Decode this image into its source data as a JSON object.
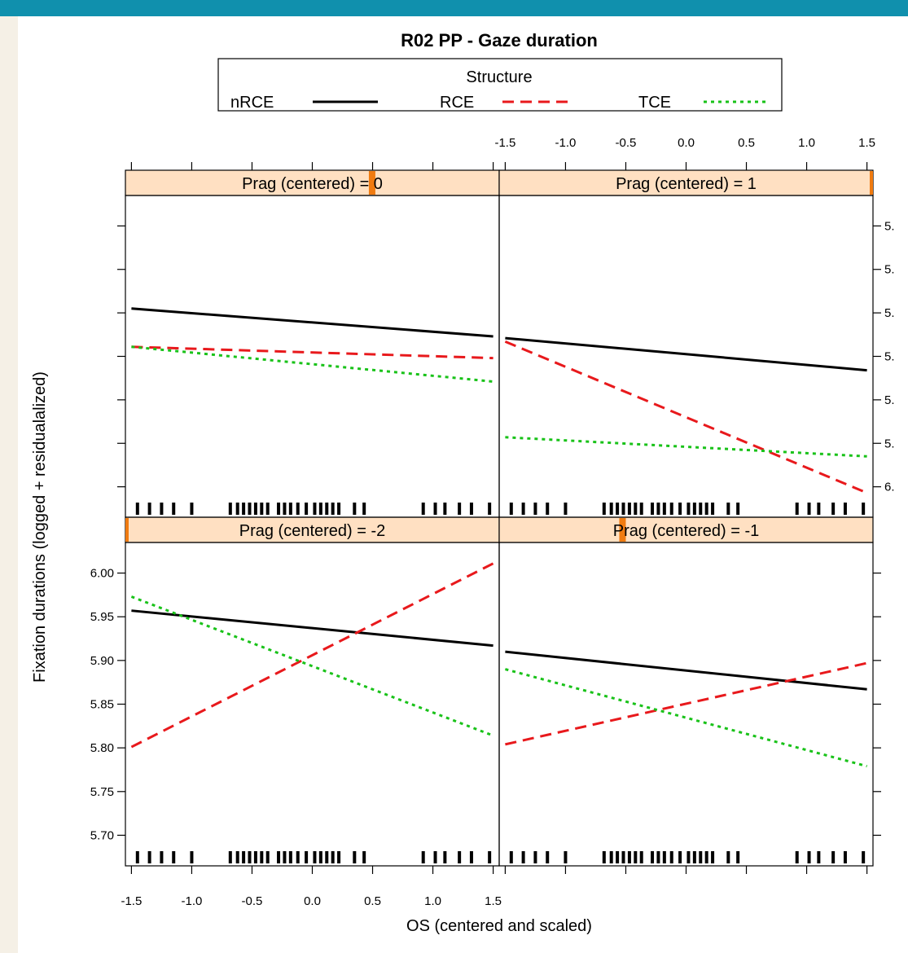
{
  "page": {
    "topbar_color": "#1090ad",
    "sidebar_color": "#f5f0e6"
  },
  "chart_data": {
    "type": "line",
    "title": "R02 PP - Gaze duration",
    "xlabel": "OS (centered and scaled)",
    "ylabel": "Fixation durations (logged + residualalized)",
    "xlim": [
      -1.55,
      1.55
    ],
    "ylim": [
      5.665,
      6.035
    ],
    "xticks": [
      "-1.5",
      "-1.0",
      "-0.5",
      "0.0",
      "0.5",
      "1.0",
      "1.5"
    ],
    "yticks": [
      "5.70",
      "5.75",
      "5.80",
      "5.85",
      "5.90",
      "5.95",
      "6.00"
    ],
    "right_ytick_labels": [
      "6.",
      "5.",
      "5.",
      "5.",
      "5.",
      "5.",
      "5."
    ],
    "legend": {
      "title": "Structure",
      "position": "top",
      "entries": [
        {
          "name": "nRCE",
          "color": "#000000",
          "style": "solid"
        },
        {
          "name": "RCE",
          "color": "#e8191c",
          "style": "dashed"
        },
        {
          "name": "TCE",
          "color": "#19c219",
          "style": "dotted"
        }
      ]
    },
    "strip_color": "#ffe0c2",
    "strip_marker_color": "#f07b10",
    "rug_x": [
      -1.45,
      -1.35,
      -1.25,
      -1.15,
      -1.0,
      -0.68,
      -0.62,
      -0.57,
      -0.52,
      -0.47,
      -0.42,
      -0.37,
      -0.28,
      -0.23,
      -0.18,
      -0.12,
      -0.05,
      0.02,
      0.07,
      0.12,
      0.17,
      0.22,
      0.35,
      0.43,
      0.92,
      1.02,
      1.1,
      1.22,
      1.32,
      1.47
    ],
    "panels": [
      {
        "strip": "Prag (centered) = -2",
        "row": "bottom",
        "col": "left",
        "strip_marker_frac": 0.0,
        "series": [
          {
            "name": "nRCE",
            "x": [
              -1.5,
              1.5
            ],
            "y": [
              5.957,
              5.917
            ]
          },
          {
            "name": "RCE",
            "x": [
              -1.5,
              1.5
            ],
            "y": [
              5.801,
              6.011
            ]
          },
          {
            "name": "TCE",
            "x": [
              -1.5,
              1.5
            ],
            "y": [
              5.973,
              5.814
            ]
          }
        ]
      },
      {
        "strip": "Prag (centered) = -1",
        "row": "bottom",
        "col": "right",
        "strip_marker_frac": 0.33,
        "series": [
          {
            "name": "nRCE",
            "x": [
              -1.5,
              1.5
            ],
            "y": [
              5.91,
              5.867
            ]
          },
          {
            "name": "RCE",
            "x": [
              -1.5,
              1.5
            ],
            "y": [
              5.804,
              5.897
            ]
          },
          {
            "name": "TCE",
            "x": [
              -1.5,
              1.5
            ],
            "y": [
              5.89,
              5.779
            ]
          }
        ]
      },
      {
        "strip": "Prag (centered) = 0",
        "row": "top",
        "col": "left",
        "strip_marker_frac": 0.66,
        "series": [
          {
            "name": "nRCE",
            "x": [
              -1.5,
              1.5
            ],
            "y": [
              5.905,
              5.873
            ]
          },
          {
            "name": "RCE",
            "x": [
              -1.5,
              1.5
            ],
            "y": [
              5.861,
              5.848
            ]
          },
          {
            "name": "TCE",
            "x": [
              -1.5,
              1.5
            ],
            "y": [
              5.861,
              5.821
            ]
          }
        ]
      },
      {
        "strip": "Prag (centered) = 1",
        "row": "top",
        "col": "right",
        "strip_marker_frac": 1.0,
        "series": [
          {
            "name": "nRCE",
            "x": [
              -1.5,
              1.5
            ],
            "y": [
              5.871,
              5.834
            ]
          },
          {
            "name": "RCE",
            "x": [
              -1.5,
              1.5
            ],
            "y": [
              5.867,
              5.693
            ]
          },
          {
            "name": "TCE",
            "x": [
              -1.5,
              1.5
            ],
            "y": [
              5.757,
              5.735
            ]
          }
        ]
      }
    ]
  }
}
